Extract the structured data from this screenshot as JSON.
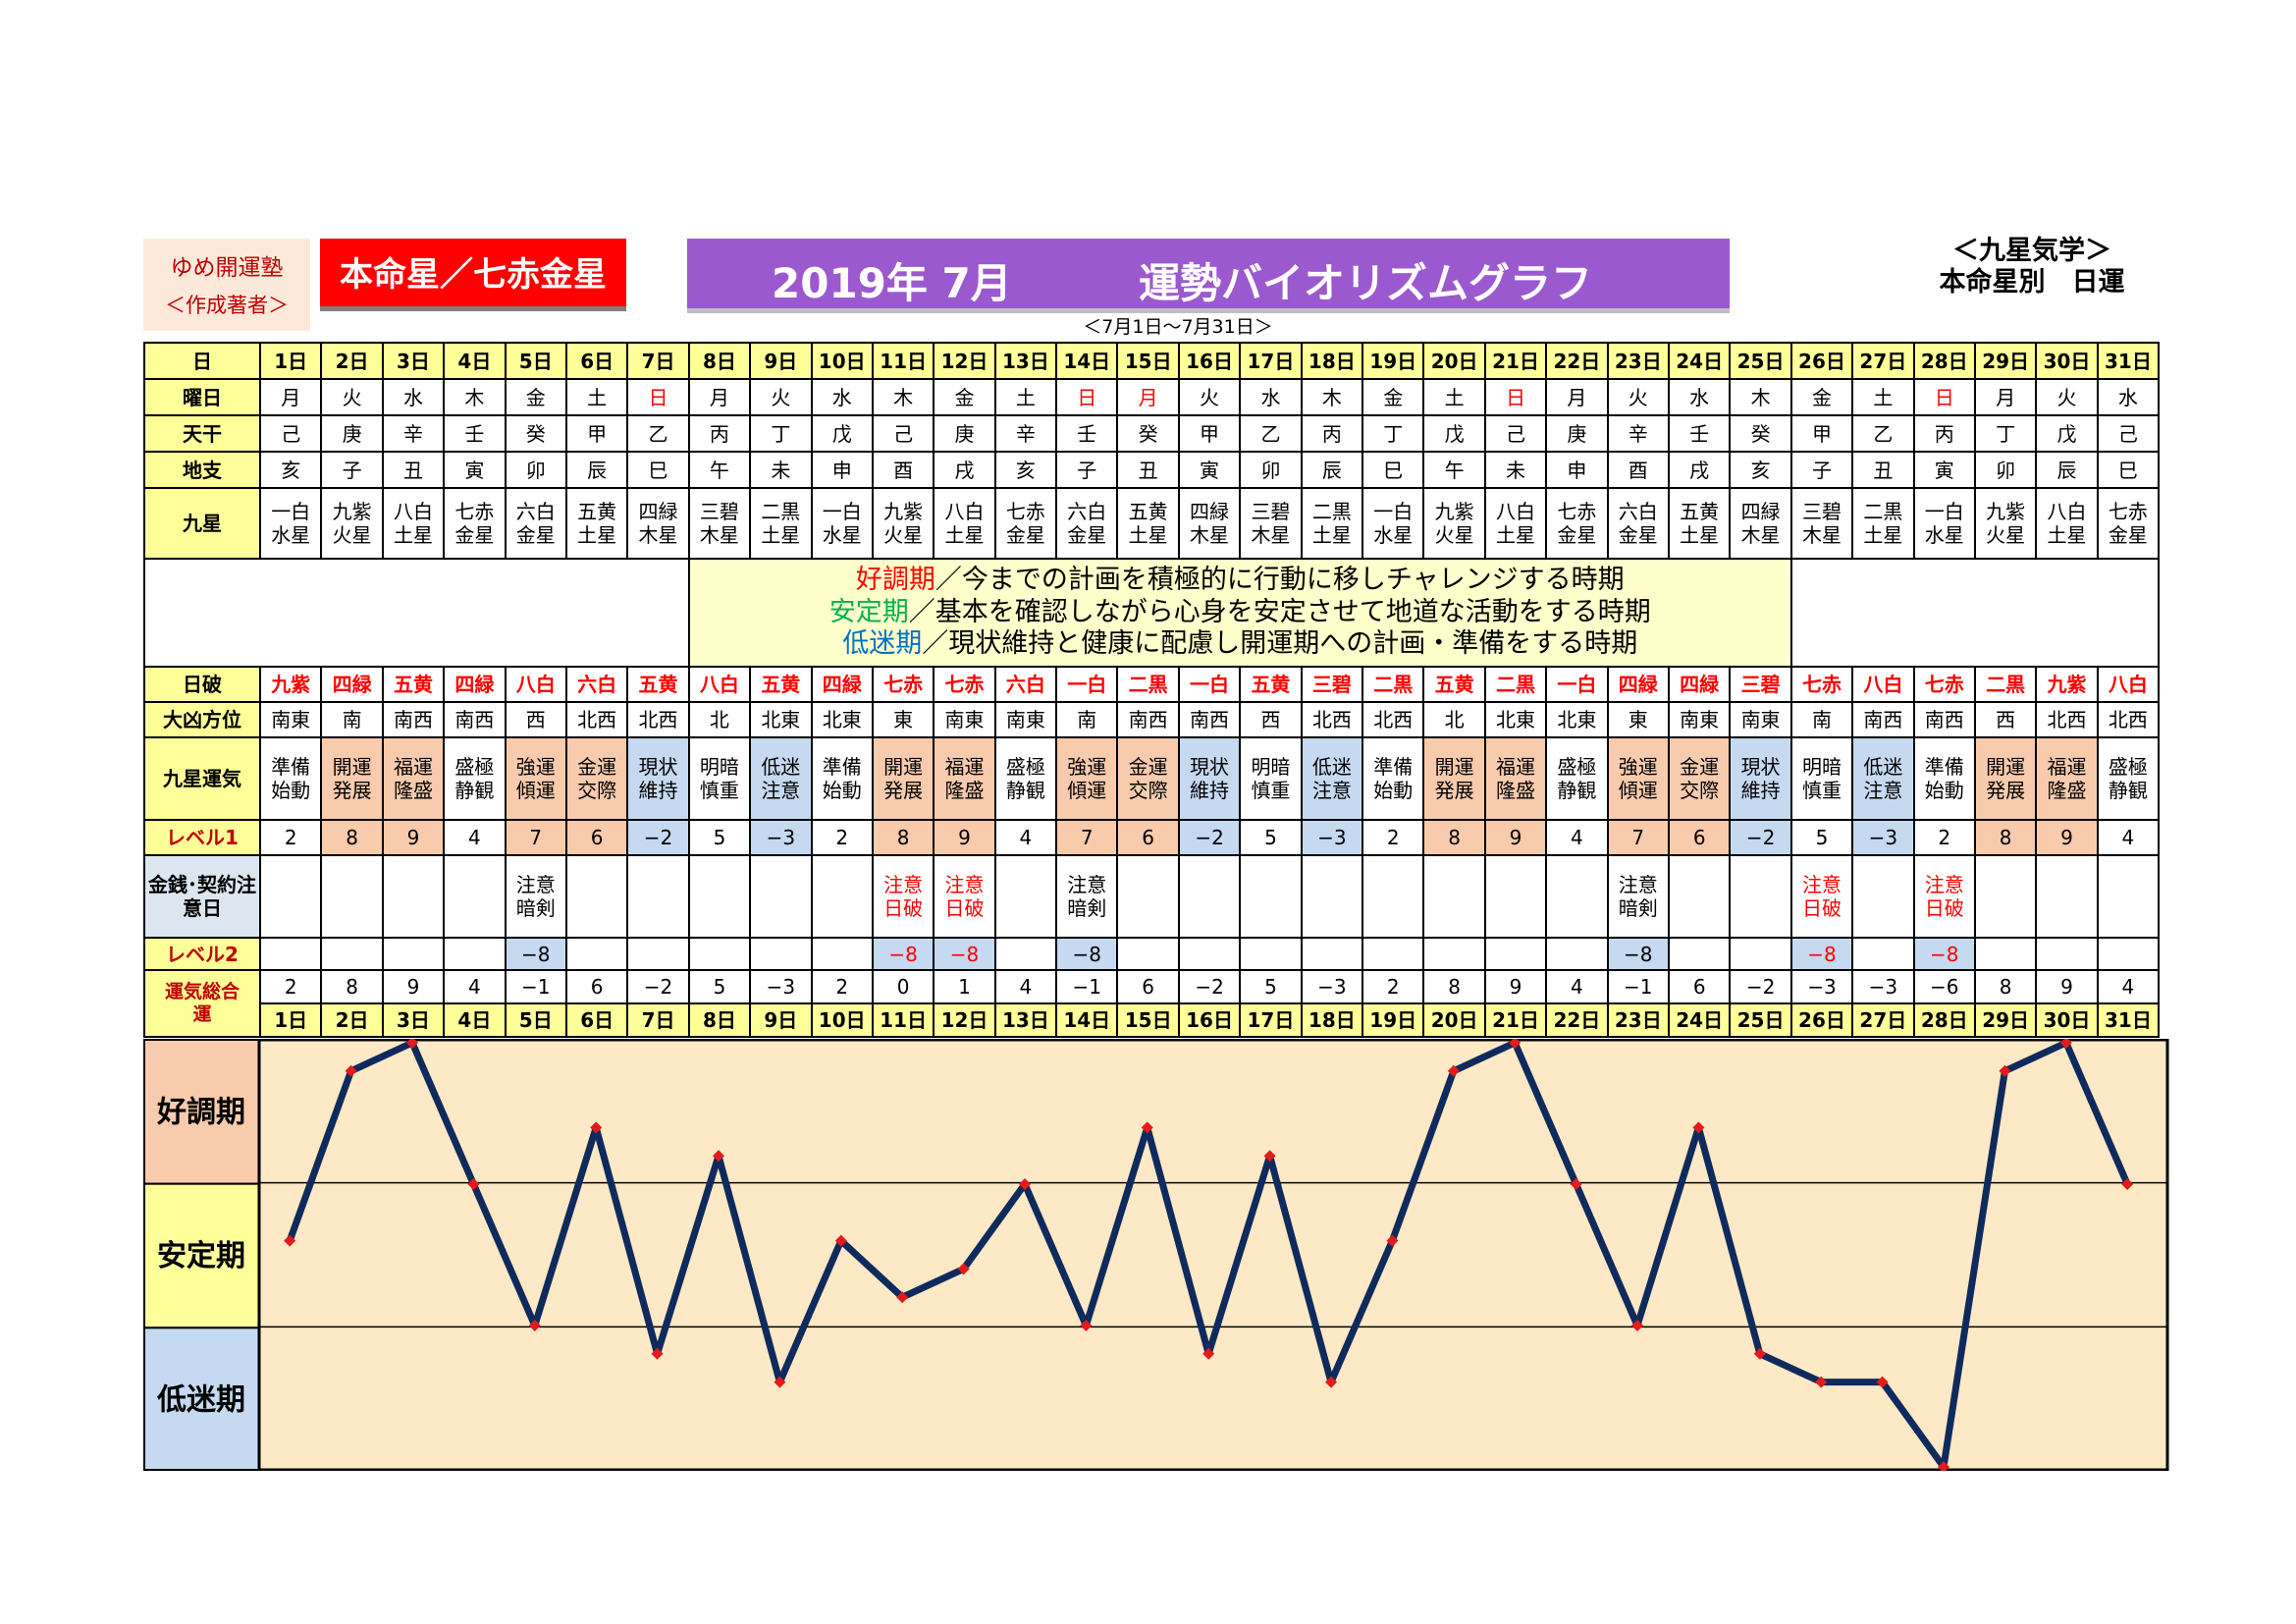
{
  "header": {
    "author_line1": "ゆめ開運塾",
    "author_line2": "＜作成著者＞",
    "honmei": "本命星／七赤金星",
    "title_year_month": "2019年 7月",
    "title_main": "運勢バイオリズムグラフ",
    "subtitle": "＜7月1日～7月31日＞",
    "kyusei_line1": "＜九星気学＞",
    "kyusei_line2": "本命星別　日運"
  },
  "row_labels": {
    "day": "日",
    "weekday": "曜日",
    "tenkan": "天干",
    "chishi": "地支",
    "kyusei": "九星",
    "hiha": "日破",
    "direction": "大凶方位",
    "unki": "九星運気",
    "level1": "レベル1",
    "money": "金銭･契約注意日",
    "level2": "レベル2",
    "total": "運気総合運"
  },
  "legend": {
    "line1_key": "好調期",
    "line1_text": "／今までの計画を積極的に行動に移しチャレンジする時期",
    "line2_key": "安定期",
    "line2_text": "／基本を確認しながら心身を安定させて地道な活動をする時期",
    "line3_key": "低迷期",
    "line3_text": "／現状維持と健康に配慮し開運期への計画・準備をする時期",
    "line1_color": "#ff0000",
    "line2_color": "#00b050",
    "line3_color": "#0070c0"
  },
  "days": [
    "1日",
    "2日",
    "3日",
    "4日",
    "5日",
    "6日",
    "7日",
    "8日",
    "9日",
    "10日",
    "11日",
    "12日",
    "13日",
    "14日",
    "15日",
    "16日",
    "17日",
    "18日",
    "19日",
    "20日",
    "21日",
    "22日",
    "23日",
    "24日",
    "25日",
    "26日",
    "27日",
    "28日",
    "29日",
    "30日",
    "31日"
  ],
  "weekdays": [
    "月",
    "火",
    "水",
    "木",
    "金",
    "土",
    "日",
    "月",
    "火",
    "水",
    "木",
    "金",
    "土",
    "日",
    "月",
    "火",
    "水",
    "木",
    "金",
    "土",
    "日",
    "月",
    "火",
    "水",
    "木",
    "金",
    "土",
    "日",
    "月",
    "火",
    "水"
  ],
  "weekday_red": [
    false,
    false,
    false,
    false,
    false,
    false,
    true,
    false,
    false,
    false,
    false,
    false,
    false,
    true,
    true,
    false,
    false,
    false,
    false,
    false,
    true,
    false,
    false,
    false,
    false,
    false,
    false,
    true,
    false,
    false,
    false
  ],
  "tenkan": [
    "己",
    "庚",
    "辛",
    "壬",
    "癸",
    "甲",
    "乙",
    "丙",
    "丁",
    "戊",
    "己",
    "庚",
    "辛",
    "壬",
    "癸",
    "甲",
    "乙",
    "丙",
    "丁",
    "戊",
    "己",
    "庚",
    "辛",
    "壬",
    "癸",
    "甲",
    "乙",
    "丙",
    "丁",
    "戊",
    "己"
  ],
  "chishi": [
    "亥",
    "子",
    "丑",
    "寅",
    "卯",
    "辰",
    "巳",
    "午",
    "未",
    "申",
    "酉",
    "戌",
    "亥",
    "子",
    "丑",
    "寅",
    "卯",
    "辰",
    "巳",
    "午",
    "未",
    "申",
    "酉",
    "戌",
    "亥",
    "子",
    "丑",
    "寅",
    "卯",
    "辰",
    "巳"
  ],
  "kyusei_top": [
    "一白",
    "九紫",
    "八白",
    "七赤",
    "六白",
    "五黄",
    "四緑",
    "三碧",
    "二黒",
    "一白",
    "九紫",
    "八白",
    "七赤",
    "六白",
    "五黄",
    "四緑",
    "三碧",
    "二黒",
    "一白",
    "九紫",
    "八白",
    "七赤",
    "六白",
    "五黄",
    "四緑",
    "三碧",
    "二黒",
    "一白",
    "九紫",
    "八白",
    "七赤"
  ],
  "kyusei_bottom": [
    "水星",
    "火星",
    "土星",
    "金星",
    "金星",
    "土星",
    "木星",
    "木星",
    "土星",
    "水星",
    "火星",
    "土星",
    "金星",
    "金星",
    "土星",
    "木星",
    "木星",
    "土星",
    "水星",
    "火星",
    "土星",
    "金星",
    "金星",
    "土星",
    "木星",
    "木星",
    "土星",
    "水星",
    "火星",
    "土星",
    "金星"
  ],
  "hiha": [
    "九紫",
    "四緑",
    "五黄",
    "四緑",
    "八白",
    "六白",
    "五黄",
    "八白",
    "五黄",
    "四緑",
    "七赤",
    "七赤",
    "六白",
    "一白",
    "二黒",
    "一白",
    "五黄",
    "三碧",
    "二黒",
    "五黄",
    "二黒",
    "一白",
    "四緑",
    "四緑",
    "三碧",
    "七赤",
    "八白",
    "七赤",
    "二黒",
    "九紫",
    "八白"
  ],
  "directions": [
    "南東",
    "南",
    "南西",
    "南西",
    "西",
    "北西",
    "北西",
    "北",
    "北東",
    "北東",
    "東",
    "南東",
    "南東",
    "南",
    "南西",
    "南西",
    "西",
    "北西",
    "北西",
    "北",
    "北東",
    "北東",
    "東",
    "南東",
    "南東",
    "南",
    "南西",
    "南西",
    "西",
    "北西",
    "北西"
  ],
  "unki_top": [
    "準備",
    "開運",
    "福運",
    "盛極",
    "強運",
    "金運",
    "現状",
    "明暗",
    "低迷",
    "準備",
    "開運",
    "福運",
    "盛極",
    "強運",
    "金運",
    "現状",
    "明暗",
    "低迷",
    "準備",
    "開運",
    "福運",
    "盛極",
    "強運",
    "金運",
    "現状",
    "明暗",
    "低迷",
    "準備",
    "開運",
    "福運",
    "盛極"
  ],
  "unki_bottom": [
    "始動",
    "発展",
    "隆盛",
    "静観",
    "傾運",
    "交際",
    "維持",
    "慎重",
    "注意",
    "始動",
    "発展",
    "隆盛",
    "静観",
    "傾運",
    "交際",
    "維持",
    "慎重",
    "注意",
    "始動",
    "発展",
    "隆盛",
    "静観",
    "傾運",
    "交際",
    "維持",
    "慎重",
    "注意",
    "始動",
    "発展",
    "隆盛",
    "静観"
  ],
  "level1": [
    "2",
    "8",
    "9",
    "4",
    "7",
    "6",
    "−2",
    "5",
    "−3",
    "2",
    "8",
    "9",
    "4",
    "7",
    "6",
    "−2",
    "5",
    "−3",
    "2",
    "8",
    "9",
    "4",
    "7",
    "6",
    "−2",
    "5",
    "−3",
    "2",
    "8",
    "9",
    "4"
  ],
  "money_top": [
    "",
    "",
    "",
    "",
    "注意",
    "",
    "",
    "",
    "",
    "",
    "注意",
    "注意",
    "",
    "注意",
    "",
    "",
    "",
    "",
    "",
    "",
    "",
    "",
    "注意",
    "",
    "",
    "注意",
    "",
    "注意",
    "",
    "",
    ""
  ],
  "money_bottom": [
    "",
    "",
    "",
    "",
    "暗剣",
    "",
    "",
    "",
    "",
    "",
    "日破",
    "日破",
    "",
    "暗剣",
    "",
    "",
    "",
    "",
    "",
    "",
    "",
    "",
    "暗剣",
    "",
    "",
    "日破",
    "",
    "日破",
    "",
    "",
    ""
  ],
  "money_red": [
    false,
    false,
    false,
    false,
    false,
    false,
    false,
    false,
    false,
    false,
    true,
    true,
    false,
    false,
    false,
    false,
    false,
    false,
    false,
    false,
    false,
    false,
    false,
    false,
    false,
    true,
    false,
    true,
    false,
    false,
    false
  ],
  "level2": [
    "",
    "",
    "",
    "",
    "−8",
    "",
    "",
    "",
    "",
    "",
    "−8",
    "−8",
    "",
    "−8",
    "",
    "",
    "",
    "",
    "",
    "",
    "",
    "",
    "−8",
    "",
    "",
    "−8",
    "",
    "−8",
    "",
    "",
    ""
  ],
  "total": [
    "2",
    "8",
    "9",
    "4",
    "−1",
    "6",
    "−2",
    "5",
    "−3",
    "2",
    "0",
    "1",
    "4",
    "−1",
    "6",
    "−2",
    "5",
    "−3",
    "2",
    "8",
    "9",
    "4",
    "−1",
    "6",
    "−2",
    "−3",
    "−3",
    "−6",
    "8",
    "9",
    "4"
  ],
  "chart_labels": {
    "good": "好調期",
    "stable": "安定期",
    "low": "低迷期"
  },
  "chart_data": {
    "type": "line",
    "categories": [
      "1日",
      "2日",
      "3日",
      "4日",
      "5日",
      "6日",
      "7日",
      "8日",
      "9日",
      "10日",
      "11日",
      "12日",
      "13日",
      "14日",
      "15日",
      "16日",
      "17日",
      "18日",
      "19日",
      "20日",
      "21日",
      "22日",
      "23日",
      "24日",
      "25日",
      "26日",
      "27日",
      "28日",
      "29日",
      "30日",
      "31日"
    ],
    "series": [
      {
        "values": [
          2,
          8,
          9,
          4,
          -1,
          6,
          -2,
          5,
          -3,
          2,
          0,
          1,
          4,
          -1,
          6,
          -2,
          5,
          -3,
          2,
          8,
          9,
          4,
          -1,
          6,
          -2,
          -3,
          -3,
          -6,
          8,
          9,
          4
        ]
      }
    ],
    "ylim": [
      -6,
      9
    ],
    "bands": [
      "好調期",
      "安定期",
      "低迷期"
    ],
    "line_color": "#0f2a5c",
    "marker_color": "#e31b1b",
    "band_colors": {
      "good": "#f8cbad",
      "stable": "#ffff99",
      "low": "#c5d9f1",
      "plot": "#fde9c6"
    }
  }
}
